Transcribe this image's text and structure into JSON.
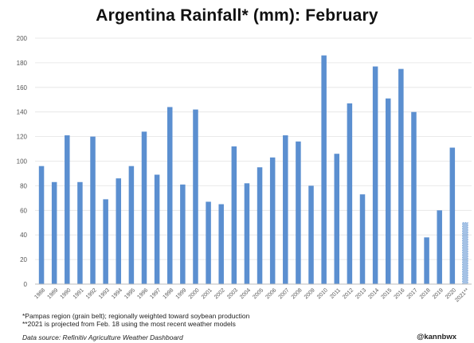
{
  "chart_data": {
    "type": "bar",
    "title": "Argentina Rainfall* (mm): February",
    "xlabel": "",
    "ylabel": "",
    "ylim": [
      0,
      200
    ],
    "yticks": [
      0,
      20,
      40,
      60,
      80,
      100,
      120,
      140,
      160,
      180,
      200
    ],
    "grid": true,
    "legend": "none",
    "bar_color": "#5b8fd0",
    "projected_color": "#5b8fd0",
    "categories": [
      "1988",
      "1989",
      "1990",
      "1991",
      "1992",
      "1993",
      "1994",
      "1995",
      "1996",
      "1997",
      "1998",
      "1999",
      "2000",
      "2001",
      "2002",
      "2003",
      "2004",
      "2005",
      "2006",
      "2007",
      "2008",
      "2009",
      "2010",
      "2011",
      "2012",
      "2013",
      "2014",
      "2015",
      "2016",
      "2017",
      "2018",
      "2019",
      "2020",
      "2021**"
    ],
    "values": [
      96,
      83,
      121,
      83,
      120,
      69,
      86,
      96,
      124,
      89,
      144,
      81,
      142,
      67,
      65,
      112,
      82,
      95,
      103,
      121,
      116,
      80,
      186,
      106,
      147,
      73,
      177,
      151,
      175,
      140,
      38,
      60,
      111,
      50
    ],
    "projected_index": 33
  },
  "footnotes": {
    "note1": "*Pampas region (grain belt); regionally weighted toward soybean production",
    "note2": "**2021 is projected from Feb. 18 using the most recent weather models"
  },
  "source": "Data source: Refinitiv Agriculture Weather Dashboard",
  "handle": "@kannbwx"
}
